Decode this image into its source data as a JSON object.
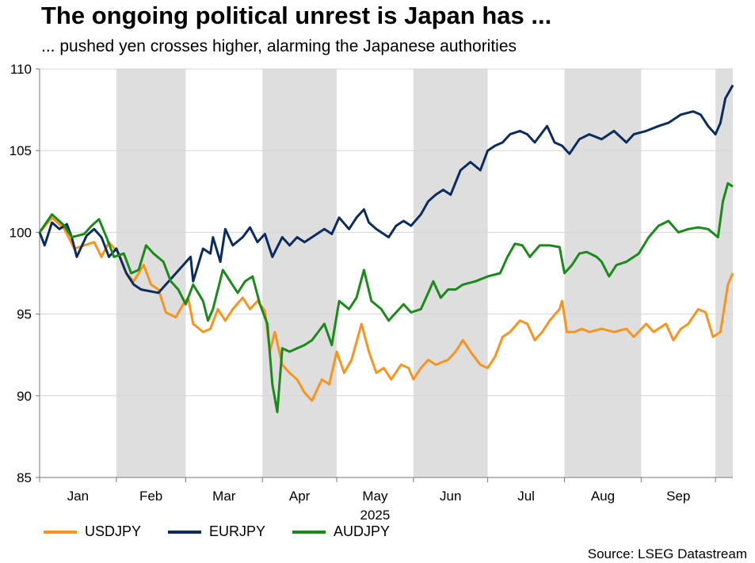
{
  "title": "The ongoing political unrest is Japan has ...",
  "subtitle": "... pushed yen crosses higher, alarming the Japanese authorities",
  "source": "Source: LSEG Datastream",
  "chart_data": {
    "type": "line",
    "title": "The ongoing political unrest is Japan has ...",
    "xlabel": "2025",
    "ylabel": "",
    "xlim": [
      0,
      280
    ],
    "ylim": [
      85,
      110
    ],
    "yticks": [
      85,
      90,
      95,
      100,
      105,
      110
    ],
    "grid": true,
    "legend_placement": "bottom",
    "months": [
      {
        "label": "Jan",
        "start": 0,
        "end": 31,
        "shaded": false
      },
      {
        "label": "Feb",
        "start": 31,
        "end": 59,
        "shaded": true
      },
      {
        "label": "Mar",
        "start": 59,
        "end": 90,
        "shaded": false
      },
      {
        "label": "Apr",
        "start": 90,
        "end": 120,
        "shaded": true
      },
      {
        "label": "May",
        "start": 120,
        "end": 151,
        "shaded": false
      },
      {
        "label": "Jun",
        "start": 151,
        "end": 181,
        "shaded": true
      },
      {
        "label": "Jul",
        "start": 181,
        "end": 212,
        "shaded": false
      },
      {
        "label": "Aug",
        "start": 212,
        "end": 243,
        "shaded": true
      },
      {
        "label": "Sep",
        "start": 243,
        "end": 273,
        "shaded": false
      },
      {
        "label": "",
        "start": 273,
        "end": 280,
        "shaded": true
      }
    ],
    "series": [
      {
        "name": "USDJPY",
        "color": "#f7941d",
        "points": [
          [
            0,
            100.0
          ],
          [
            5,
            100.9
          ],
          [
            10,
            100.2
          ],
          [
            14,
            99.0
          ],
          [
            18,
            99.2
          ],
          [
            22,
            99.4
          ],
          [
            25,
            98.5
          ],
          [
            28,
            99.4
          ],
          [
            32,
            98.7
          ],
          [
            35,
            97.5
          ],
          [
            38,
            97.0
          ],
          [
            42,
            98.0
          ],
          [
            45,
            96.8
          ],
          [
            48,
            96.5
          ],
          [
            51,
            95.1
          ],
          [
            55,
            94.8
          ],
          [
            58,
            95.6
          ],
          [
            60,
            96.0
          ],
          [
            62,
            94.4
          ],
          [
            66,
            93.9
          ],
          [
            69,
            94.1
          ],
          [
            72,
            95.3
          ],
          [
            75,
            94.6
          ],
          [
            78,
            95.3
          ],
          [
            82,
            96.0
          ],
          [
            85,
            95.3
          ],
          [
            88,
            95.8
          ],
          [
            91,
            95.2
          ],
          [
            93,
            92.7
          ],
          [
            95,
            93.9
          ],
          [
            98,
            91.9
          ],
          [
            101,
            91.4
          ],
          [
            104,
            91.0
          ],
          [
            107,
            90.2
          ],
          [
            110,
            89.7
          ],
          [
            114,
            91.0
          ],
          [
            117,
            90.7
          ],
          [
            120,
            92.7
          ],
          [
            123,
            91.4
          ],
          [
            126,
            92.2
          ],
          [
            130,
            94.4
          ],
          [
            133,
            92.7
          ],
          [
            136,
            91.4
          ],
          [
            139,
            91.7
          ],
          [
            142,
            91.0
          ],
          [
            146,
            91.9
          ],
          [
            149,
            91.7
          ],
          [
            151,
            91.0
          ],
          [
            154,
            91.7
          ],
          [
            157,
            92.2
          ],
          [
            160,
            91.9
          ],
          [
            165,
            92.2
          ],
          [
            168,
            92.7
          ],
          [
            171,
            93.4
          ],
          [
            174,
            92.7
          ],
          [
            178,
            91.9
          ],
          [
            181,
            91.7
          ],
          [
            184,
            92.4
          ],
          [
            187,
            93.6
          ],
          [
            190,
            93.9
          ],
          [
            194,
            94.6
          ],
          [
            197,
            94.4
          ],
          [
            200,
            93.4
          ],
          [
            203,
            93.9
          ],
          [
            206,
            94.6
          ],
          [
            210,
            95.3
          ],
          [
            211,
            95.8
          ],
          [
            213,
            93.9
          ],
          [
            216,
            93.9
          ],
          [
            219,
            94.1
          ],
          [
            222,
            93.9
          ],
          [
            227,
            94.1
          ],
          [
            232,
            93.9
          ],
          [
            237,
            94.1
          ],
          [
            240,
            93.6
          ],
          [
            245,
            94.4
          ],
          [
            248,
            93.9
          ],
          [
            253,
            94.4
          ],
          [
            256,
            93.4
          ],
          [
            259,
            94.1
          ],
          [
            262,
            94.4
          ],
          [
            266,
            95.3
          ],
          [
            269,
            95.1
          ],
          [
            272,
            93.6
          ],
          [
            275,
            93.9
          ],
          [
            278,
            96.8
          ],
          [
            280,
            97.5
          ]
        ]
      },
      {
        "name": "EURJPY",
        "color": "#0b2d5e",
        "points": [
          [
            0,
            100.0
          ],
          [
            2,
            99.2
          ],
          [
            5,
            100.6
          ],
          [
            8,
            100.2
          ],
          [
            11,
            100.5
          ],
          [
            13,
            99.7
          ],
          [
            15,
            98.5
          ],
          [
            19,
            99.8
          ],
          [
            22,
            100.2
          ],
          [
            25,
            99.7
          ],
          [
            28,
            98.5
          ],
          [
            31,
            99.0
          ],
          [
            35,
            97.5
          ],
          [
            38,
            96.8
          ],
          [
            41,
            96.5
          ],
          [
            48,
            96.3
          ],
          [
            61,
            98.5
          ],
          [
            62,
            97.0
          ],
          [
            66,
            99.0
          ],
          [
            69,
            98.7
          ],
          [
            70,
            99.7
          ],
          [
            73,
            98.2
          ],
          [
            75,
            100.2
          ],
          [
            78,
            99.2
          ],
          [
            82,
            99.7
          ],
          [
            85,
            100.3
          ],
          [
            88,
            99.4
          ],
          [
            91,
            99.9
          ],
          [
            94,
            98.5
          ],
          [
            98,
            99.7
          ],
          [
            101,
            99.2
          ],
          [
            104,
            99.7
          ],
          [
            107,
            99.4
          ],
          [
            110,
            99.7
          ],
          [
            115,
            100.2
          ],
          [
            118,
            99.9
          ],
          [
            121,
            100.9
          ],
          [
            125,
            100.2
          ],
          [
            128,
            100.9
          ],
          [
            131,
            101.4
          ],
          [
            133,
            100.6
          ],
          [
            136,
            100.2
          ],
          [
            141,
            99.7
          ],
          [
            144,
            100.4
          ],
          [
            147,
            100.7
          ],
          [
            150,
            100.4
          ],
          [
            154,
            101.1
          ],
          [
            157,
            101.9
          ],
          [
            160,
            102.3
          ],
          [
            163,
            102.6
          ],
          [
            166,
            102.3
          ],
          [
            170,
            103.8
          ],
          [
            174,
            104.3
          ],
          [
            178,
            103.8
          ],
          [
            181,
            105.0
          ],
          [
            184,
            105.3
          ],
          [
            187,
            105.5
          ],
          [
            190,
            106.0
          ],
          [
            194,
            106.2
          ],
          [
            197,
            106.0
          ],
          [
            200,
            105.5
          ],
          [
            205,
            106.5
          ],
          [
            208,
            105.5
          ],
          [
            211,
            105.3
          ],
          [
            214,
            104.8
          ],
          [
            218,
            105.7
          ],
          [
            222,
            106.0
          ],
          [
            227,
            105.7
          ],
          [
            232,
            106.2
          ],
          [
            237,
            105.5
          ],
          [
            240,
            106.0
          ],
          [
            245,
            106.2
          ],
          [
            250,
            106.5
          ],
          [
            254,
            106.7
          ],
          [
            259,
            107.2
          ],
          [
            264,
            107.4
          ],
          [
            267,
            107.2
          ],
          [
            270,
            106.5
          ],
          [
            273,
            106.0
          ],
          [
            275,
            106.7
          ],
          [
            277,
            108.2
          ],
          [
            280,
            109.0
          ]
        ]
      },
      {
        "name": "AUDJPY",
        "color": "#1a8a1a",
        "points": [
          [
            0,
            100.0
          ],
          [
            5,
            101.1
          ],
          [
            10,
            100.4
          ],
          [
            13,
            99.7
          ],
          [
            18,
            99.9
          ],
          [
            21,
            100.4
          ],
          [
            24,
            100.8
          ],
          [
            27,
            99.7
          ],
          [
            30,
            98.5
          ],
          [
            34,
            98.7
          ],
          [
            37,
            97.5
          ],
          [
            40,
            97.7
          ],
          [
            43,
            99.2
          ],
          [
            46,
            98.7
          ],
          [
            50,
            98.2
          ],
          [
            53,
            97.0
          ],
          [
            56,
            96.5
          ],
          [
            59,
            95.6
          ],
          [
            62,
            96.8
          ],
          [
            66,
            95.8
          ],
          [
            68,
            94.6
          ],
          [
            70,
            95.3
          ],
          [
            74,
            97.7
          ],
          [
            77,
            97.0
          ],
          [
            80,
            96.3
          ],
          [
            83,
            97.0
          ],
          [
            86,
            97.3
          ],
          [
            89,
            95.6
          ],
          [
            92,
            94.4
          ],
          [
            94,
            90.7
          ],
          [
            96,
            89.0
          ],
          [
            98,
            92.9
          ],
          [
            101,
            92.7
          ],
          [
            104,
            92.9
          ],
          [
            107,
            93.1
          ],
          [
            110,
            93.4
          ],
          [
            115,
            94.4
          ],
          [
            118,
            93.1
          ],
          [
            121,
            95.8
          ],
          [
            125,
            95.3
          ],
          [
            128,
            96.0
          ],
          [
            131,
            97.7
          ],
          [
            134,
            95.8
          ],
          [
            138,
            95.3
          ],
          [
            141,
            94.6
          ],
          [
            144,
            95.1
          ],
          [
            147,
            95.6
          ],
          [
            150,
            95.1
          ],
          [
            154,
            95.3
          ],
          [
            157,
            96.3
          ],
          [
            159,
            97.0
          ],
          [
            162,
            96.0
          ],
          [
            165,
            96.5
          ],
          [
            168,
            96.5
          ],
          [
            171,
            96.8
          ],
          [
            176,
            97.0
          ],
          [
            181,
            97.3
          ],
          [
            186,
            97.5
          ],
          [
            189,
            98.5
          ],
          [
            192,
            99.3
          ],
          [
            195,
            99.2
          ],
          [
            198,
            98.5
          ],
          [
            202,
            99.2
          ],
          [
            206,
            99.2
          ],
          [
            210,
            99.1
          ],
          [
            212,
            97.5
          ],
          [
            215,
            98.0
          ],
          [
            218,
            98.7
          ],
          [
            221,
            98.8
          ],
          [
            225,
            98.5
          ],
          [
            227,
            98.2
          ],
          [
            230,
            97.3
          ],
          [
            233,
            98.0
          ],
          [
            237,
            98.2
          ],
          [
            242,
            98.7
          ],
          [
            246,
            99.7
          ],
          [
            250,
            100.4
          ],
          [
            254,
            100.7
          ],
          [
            258,
            100.0
          ],
          [
            262,
            100.2
          ],
          [
            266,
            100.3
          ],
          [
            270,
            100.2
          ],
          [
            274,
            99.7
          ],
          [
            276,
            101.9
          ],
          [
            278,
            103.0
          ],
          [
            280,
            102.8
          ]
        ]
      }
    ]
  }
}
